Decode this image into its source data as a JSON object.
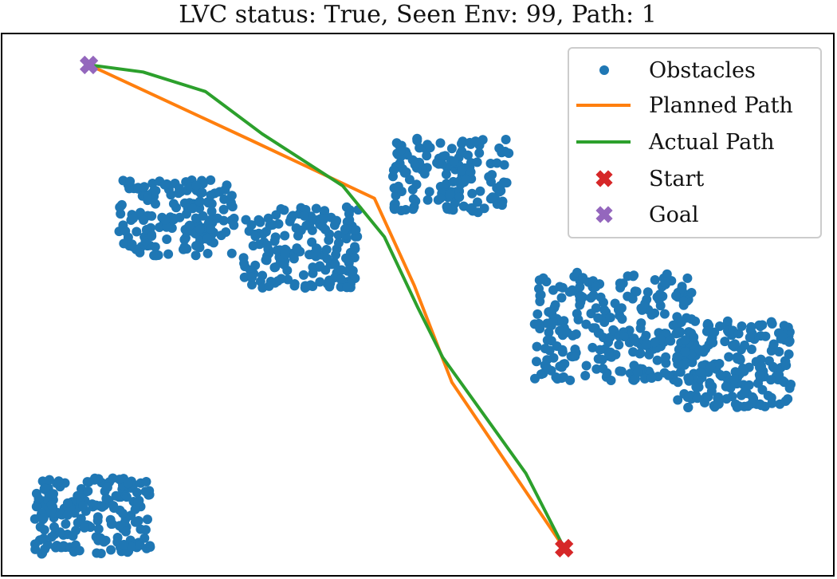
{
  "chart_data": {
    "type": "scatter",
    "title": "LVC status: True, Seen Env: 99, Path: 1",
    "xlabel": "",
    "ylabel": "",
    "xlim": [
      0,
      100
    ],
    "ylim": [
      0,
      100
    ],
    "grid": false,
    "ticks_visible": false,
    "legend_placement": "upper-right",
    "colors": {
      "obstacles": "#1f77b4",
      "planned": "#ff7f0e",
      "actual": "#2ca02c",
      "start": "#d62728",
      "goal": "#9467bd"
    },
    "obstacle_clusters": [
      {
        "x": [
          14,
          28
        ],
        "y": [
          59,
          73
        ],
        "count": 170
      },
      {
        "x": [
          29,
          43
        ],
        "y": [
          53,
          68
        ],
        "count": 180
      },
      {
        "x": [
          47,
          61
        ],
        "y": [
          67,
          81
        ],
        "count": 150
      },
      {
        "x": [
          64,
          83
        ],
        "y": [
          36,
          56
        ],
        "count": 260
      },
      {
        "x": [
          81,
          95
        ],
        "y": [
          31,
          47
        ],
        "count": 200
      },
      {
        "x": [
          4,
          18
        ],
        "y": [
          4,
          18
        ],
        "count": 190
      }
    ],
    "series": [
      {
        "name": "Planned Path",
        "x": [
          10.5,
          30,
          44.8,
          49.6,
          54.1,
          67.6
        ],
        "y": [
          94.2,
          80.3,
          69.6,
          53.5,
          35.7,
          5.1
        ]
      },
      {
        "name": "Actual Path",
        "x": [
          10.5,
          17,
          24.5,
          31.3,
          41,
          46,
          50,
          53,
          58,
          63,
          67.6
        ],
        "y": [
          94.2,
          92.9,
          89.3,
          81.5,
          71.9,
          62.5,
          49.5,
          40.3,
          29.6,
          18.9,
          5.1
        ]
      }
    ],
    "start": {
      "name": "Start",
      "x": 67.6,
      "y": 5.1
    },
    "goal": {
      "name": "Goal",
      "x": 10.5,
      "y": 94.2
    },
    "legend": [
      "Obstacles",
      "Planned Path",
      "Actual Path",
      "Start",
      "Goal"
    ]
  }
}
